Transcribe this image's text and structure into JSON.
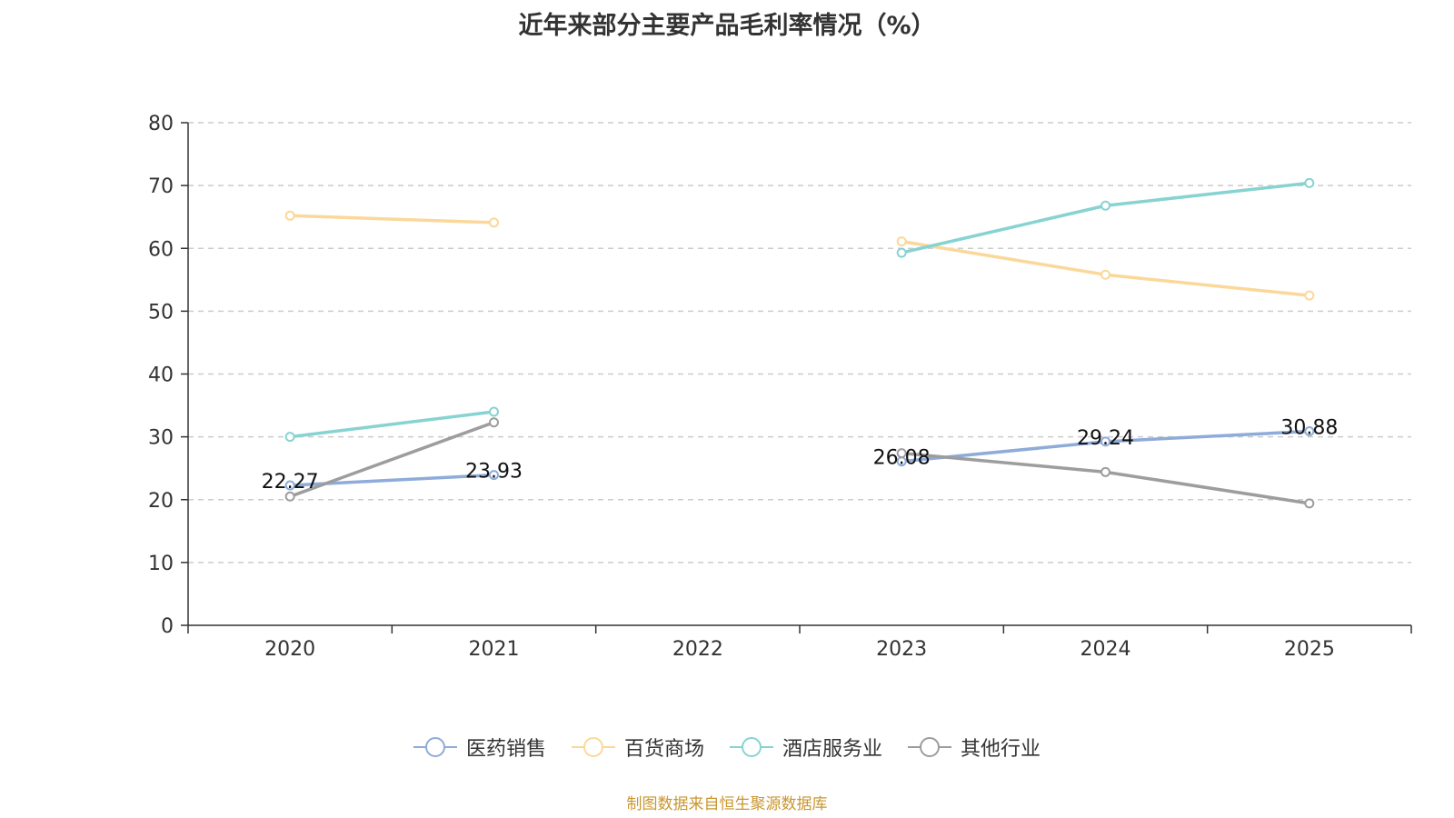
{
  "chart_data": {
    "type": "line",
    "title": "近年来部分主要产品毛利率情况（%）",
    "categories": [
      "2020",
      "2021",
      "2022",
      "2023",
      "2024",
      "2025"
    ],
    "ylim": [
      0,
      80
    ],
    "yticks": [
      0,
      10,
      20,
      30,
      40,
      50,
      60,
      70,
      80
    ],
    "grid": true,
    "legend_position": "bottom",
    "series": [
      {
        "name": "医药销售",
        "color": "#8eabd9",
        "values": [
          22.27,
          23.93,
          null,
          26.08,
          29.24,
          30.88
        ],
        "labels": [
          "22.27",
          "23.93",
          null,
          "26.08",
          "29.24",
          "30.88"
        ]
      },
      {
        "name": "百货商场",
        "color": "#fbd89a",
        "values": [
          65.2,
          64.1,
          null,
          61.1,
          55.8,
          52.5
        ],
        "labels": null
      },
      {
        "name": "酒店服务业",
        "color": "#86d3d2",
        "values": [
          30.0,
          34.0,
          null,
          59.3,
          66.8,
          70.4
        ],
        "labels": null
      },
      {
        "name": "其他行业",
        "color": "#9d9d9d",
        "values": [
          20.5,
          32.3,
          null,
          27.4,
          24.4,
          19.4
        ],
        "labels": null
      }
    ]
  },
  "source_note": "制图数据来自恒生聚源数据库"
}
